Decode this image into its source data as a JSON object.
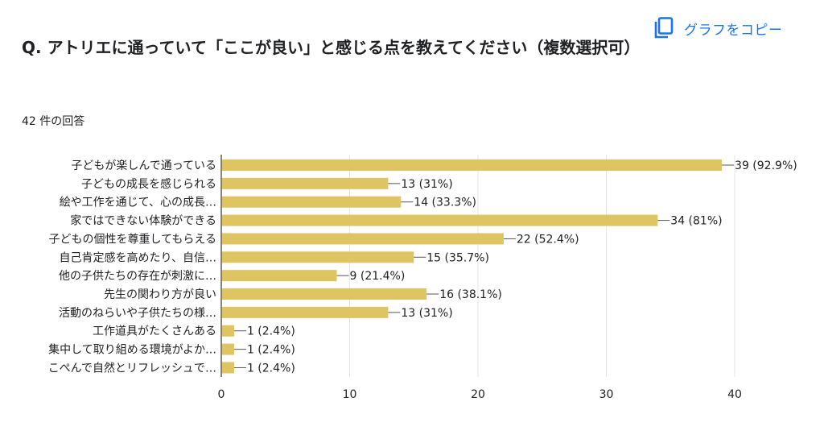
{
  "header": {
    "question": "Q. アトリエに通っていて「ここが良い」と感じる点を教えてください（複数選択可）",
    "copy_label": "グラフをコピー",
    "copy_icon": "copy-icon",
    "response_count": "42 件の回答"
  },
  "colors": {
    "bar": "#dfc462",
    "accent": "#1a73e8",
    "grid": "#e6e6e6",
    "axis": "#333333"
  },
  "chart_data": {
    "type": "bar",
    "orientation": "horizontal",
    "categories": [
      "子どもが楽しんで通っている",
      "子どもの成長を感じられる",
      "絵や工作を通じて、心の成長…",
      "家ではできない体験ができる",
      "子どもの個性を尊重してもらえる",
      "自己肯定感を高めたり、自信…",
      "他の子供たちの存在が刺激に…",
      "先生の関わり方が良い",
      "活動のねらいや子供たちの様…",
      "工作道具がたくさんある",
      "集中して取り組める環境がよか…",
      "こぺんで自然とリフレッシュで…"
    ],
    "values": [
      39,
      13,
      14,
      34,
      22,
      15,
      9,
      16,
      13,
      1,
      1,
      1
    ],
    "data_labels": [
      "39 (92.9%)",
      "13 (31%)",
      "14 (33.3%)",
      "34 (81%)",
      "22 (52.4%)",
      "15 (35.7%)",
      "9 (21.4%)",
      "16 (38.1%)",
      "13 (31%)",
      "1 (2.4%)",
      "1 (2.4%)",
      "1 (2.4%)"
    ],
    "xlim": [
      0,
      40
    ],
    "xticks": [
      0,
      10,
      20,
      30,
      40
    ],
    "grid": true,
    "title": "",
    "xlabel": "",
    "ylabel": ""
  }
}
